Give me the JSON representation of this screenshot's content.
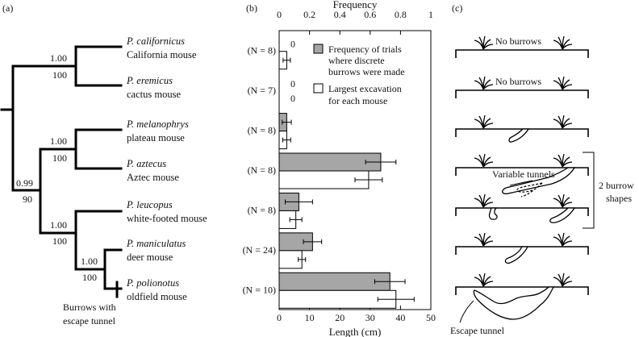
{
  "panels": [
    "(a)",
    "(b)",
    "(c)"
  ],
  "tree": {
    "species": [
      {
        "latin": "P. californicus",
        "common": "California mouse"
      },
      {
        "latin": "P. eremicus",
        "common": "cactus mouse"
      },
      {
        "latin": "P. melanophrys",
        "common": "plateau mouse"
      },
      {
        "latin": "P. aztecus",
        "common": "Aztec mouse"
      },
      {
        "latin": "P. leucopus",
        "common": "white-footed mouse"
      },
      {
        "latin": "P. maniculatus",
        "common": "deer mouse"
      },
      {
        "latin": "P. polionotus",
        "common": "oldfield mouse"
      }
    ],
    "nodes": [
      {
        "top": "1.00",
        "bottom": "100"
      },
      {
        "top": "1.00",
        "bottom": "100"
      },
      {
        "top": "0.99",
        "bottom": "90"
      },
      {
        "top": "1.00",
        "bottom": "100"
      },
      {
        "top": "1.00",
        "bottom": "100"
      }
    ],
    "annotation_line1": "Burrows with",
    "annotation_line2": "escape tunnel"
  },
  "chart_data": {
    "type": "bar",
    "orientation": "horizontal",
    "top_axis": {
      "label": "Frequency",
      "range": [
        0,
        1
      ],
      "ticks": [
        "0",
        "0.2",
        "0.4",
        "0.6",
        "0.8",
        "1"
      ]
    },
    "bottom_axis": {
      "label": "Length (cm)",
      "range": [
        0,
        50
      ],
      "ticks": [
        "0",
        "10",
        "20",
        "30",
        "40",
        "50"
      ]
    },
    "n_labels": [
      "(N = 8)",
      "(N = 7)",
      "(N = 8)",
      "(N = 8)",
      "(N = 8)",
      "(N = 24)",
      "(N = 10)"
    ],
    "series": [
      {
        "name": "Frequency of trials where discrete burrows were made",
        "legend_lines": [
          "Frequency of trials",
          "where discrete",
          "burrows were made"
        ],
        "color": "#a6a6a6",
        "axis": "top",
        "values": [
          0,
          0,
          0.05,
          0.67,
          0.13,
          0.22,
          0.73
        ],
        "errors": [
          0,
          0,
          0.03,
          0.1,
          0.09,
          0.06,
          0.1
        ],
        "zero_labels": [
          "0",
          "0",
          null,
          null,
          null,
          null,
          null
        ]
      },
      {
        "name": "Largest excavation for each mouse",
        "legend_lines": [
          "Largest excavation",
          "for each mouse"
        ],
        "color": "#ffffff",
        "axis": "bottom",
        "values": [
          2.5,
          0,
          2.5,
          29.5,
          5.5,
          7.5,
          38.5
        ],
        "errors": [
          1.2,
          0,
          1.3,
          4.5,
          2,
          1.2,
          6
        ],
        "zero_labels": [
          null,
          "0",
          null,
          null,
          null,
          null,
          null
        ]
      }
    ]
  },
  "burrows": {
    "no_burrows_label": "No burrows",
    "variable_tunnels_label": "Variable tunnels",
    "shapes_line1": "2 burrow",
    "shapes_line2": "shapes",
    "escape_tunnel_label": "Escape tunnel"
  }
}
